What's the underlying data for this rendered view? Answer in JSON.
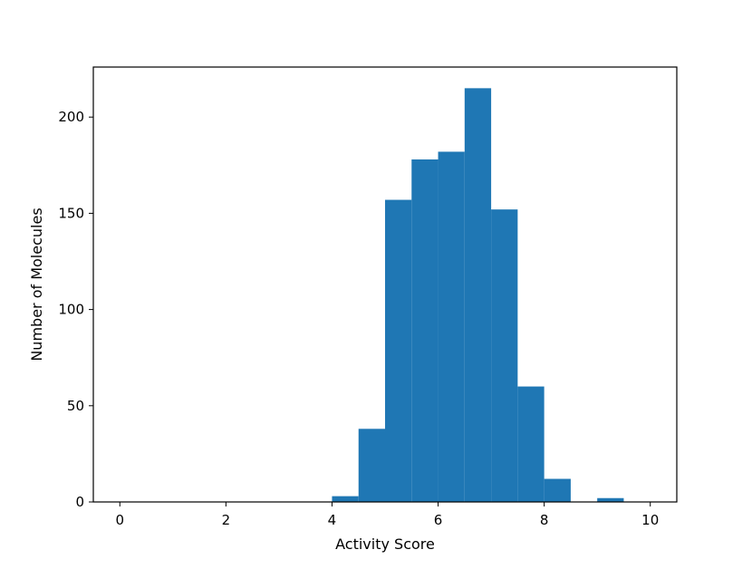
{
  "chart_data": {
    "type": "bar",
    "title": "",
    "xlabel": "Activity Score",
    "ylabel": "Number of Molecules",
    "xlim": [
      -0.5,
      10.5
    ],
    "ylim": [
      0,
      226
    ],
    "xticks": [
      0,
      2,
      4,
      6,
      8,
      10
    ],
    "yticks": [
      0,
      50,
      100,
      150,
      200
    ],
    "bin_width": 0.5,
    "bins": [
      {
        "start": 4.0,
        "end": 4.5,
        "count": 3
      },
      {
        "start": 4.5,
        "end": 5.0,
        "count": 38
      },
      {
        "start": 5.0,
        "end": 5.5,
        "count": 157
      },
      {
        "start": 5.5,
        "end": 6.0,
        "count": 178
      },
      {
        "start": 6.0,
        "end": 6.5,
        "count": 182
      },
      {
        "start": 6.5,
        "end": 7.0,
        "count": 215
      },
      {
        "start": 7.0,
        "end": 7.5,
        "count": 152
      },
      {
        "start": 7.5,
        "end": 8.0,
        "count": 60
      },
      {
        "start": 8.0,
        "end": 8.5,
        "count": 12
      },
      {
        "start": 9.0,
        "end": 9.5,
        "count": 2
      }
    ],
    "bar_color": "#1f77b4",
    "grid": false,
    "legend": "none"
  }
}
